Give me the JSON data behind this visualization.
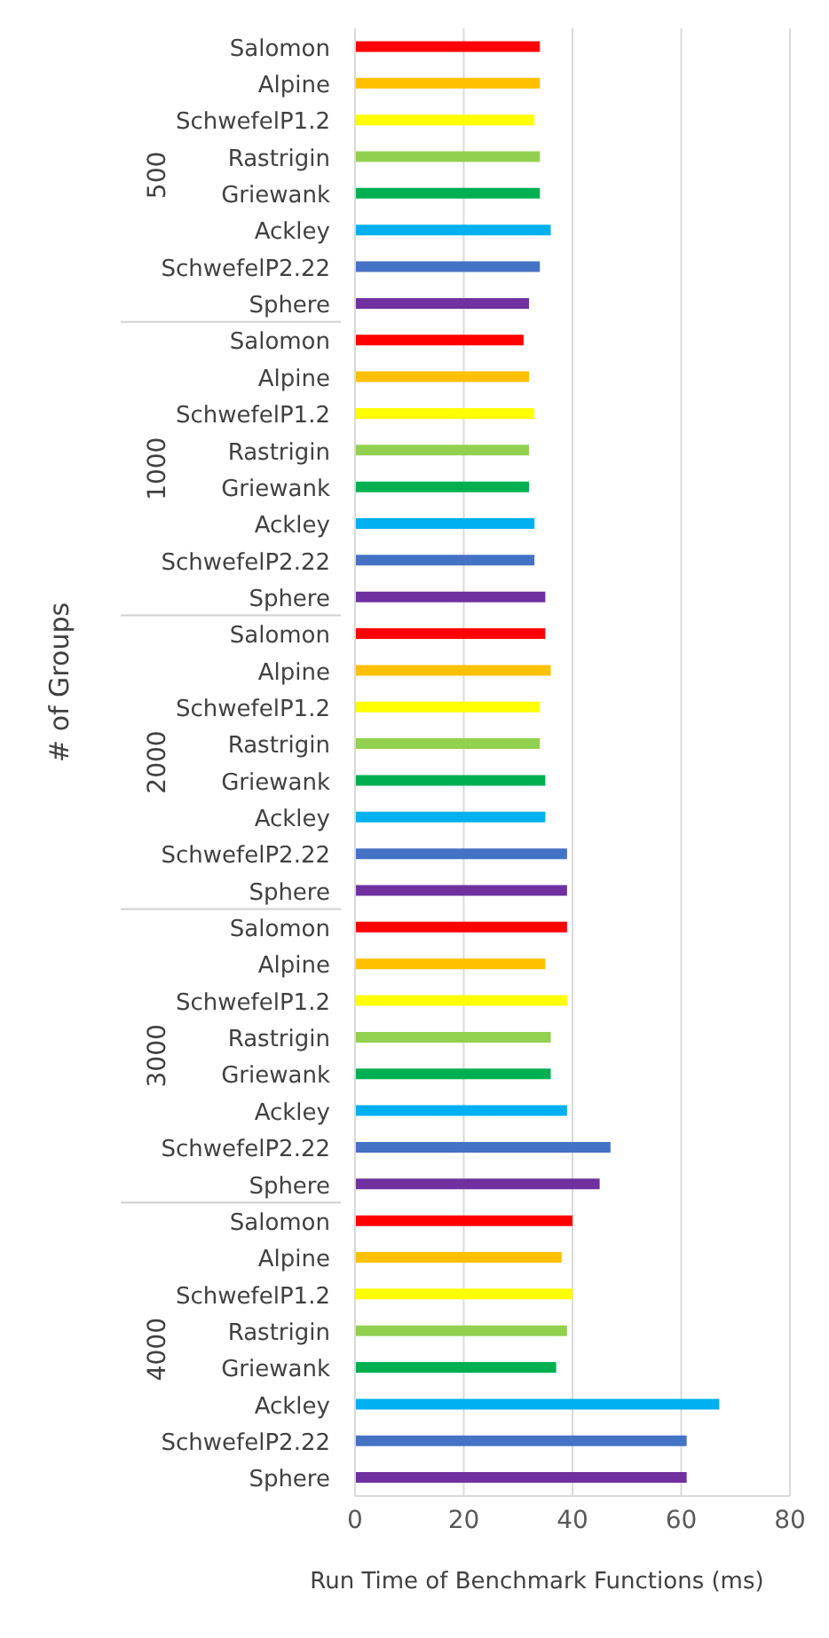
{
  "chart_data": {
    "type": "bar",
    "orientation": "horizontal",
    "xlabel": "Run Time of Benchmark Functions (ms)",
    "ylabel": "# of Groups",
    "categories": [
      "Salomon",
      "Alpine",
      "SchwefelP1.2",
      "Rastrigin",
      "Griewank",
      "Ackley",
      "SchwefelP2.22",
      "Sphere",
      "Salomon",
      "Alpine",
      "SchwefelP1.2",
      "Rastrigin",
      "Griewank",
      "Ackley",
      "SchwefelP2.22",
      "Sphere",
      "Salomon",
      "Alpine",
      "SchwefelP1.2",
      "Rastrigin",
      "Griewank",
      "Ackley",
      "SchwefelP2.22",
      "Sphere",
      "Salomon",
      "Alpine",
      "SchwefelP1.2",
      "Rastrigin",
      "Griewank",
      "Ackley",
      "SchwefelP2.22",
      "Sphere",
      "Salomon",
      "Alpine",
      "SchwefelP1.2",
      "Rastrigin",
      "Griewank",
      "Ackley",
      "SchwefelP2.22",
      "Sphere"
    ],
    "values": [
      34,
      34,
      33,
      34,
      34,
      36,
      34,
      32,
      31,
      32,
      33,
      32,
      32,
      33,
      33,
      35,
      35,
      36,
      34,
      34,
      35,
      35,
      39,
      39,
      39,
      35,
      39,
      36,
      36,
      39,
      47,
      45,
      40,
      38,
      40,
      39,
      37,
      67,
      61,
      61
    ],
    "colors": [
      "#ff0000",
      "#ffc000",
      "#ffff00",
      "#92d050",
      "#00b050",
      "#00b0f0",
      "#4472c4",
      "#7030a0",
      "#ff0000",
      "#ffc000",
      "#ffff00",
      "#92d050",
      "#00b050",
      "#00b0f0",
      "#4472c4",
      "#7030a0",
      "#ff0000",
      "#ffc000",
      "#ffff00",
      "#92d050",
      "#00b050",
      "#00b0f0",
      "#4472c4",
      "#7030a0",
      "#ff0000",
      "#ffc000",
      "#ffff00",
      "#92d050",
      "#00b050",
      "#00b0f0",
      "#4472c4",
      "#7030a0",
      "#ff0000",
      "#ffc000",
      "#ffff00",
      "#92d050",
      "#00b050",
      "#00b0f0",
      "#4472c4",
      "#7030a0"
    ],
    "annotations": [
      "500",
      "1000",
      "2000",
      "3000",
      "4000"
    ],
    "xlim": [
      0,
      80
    ],
    "xticks": [
      0,
      20,
      40,
      60,
      80
    ],
    "grid": "x",
    "legend": false
  }
}
